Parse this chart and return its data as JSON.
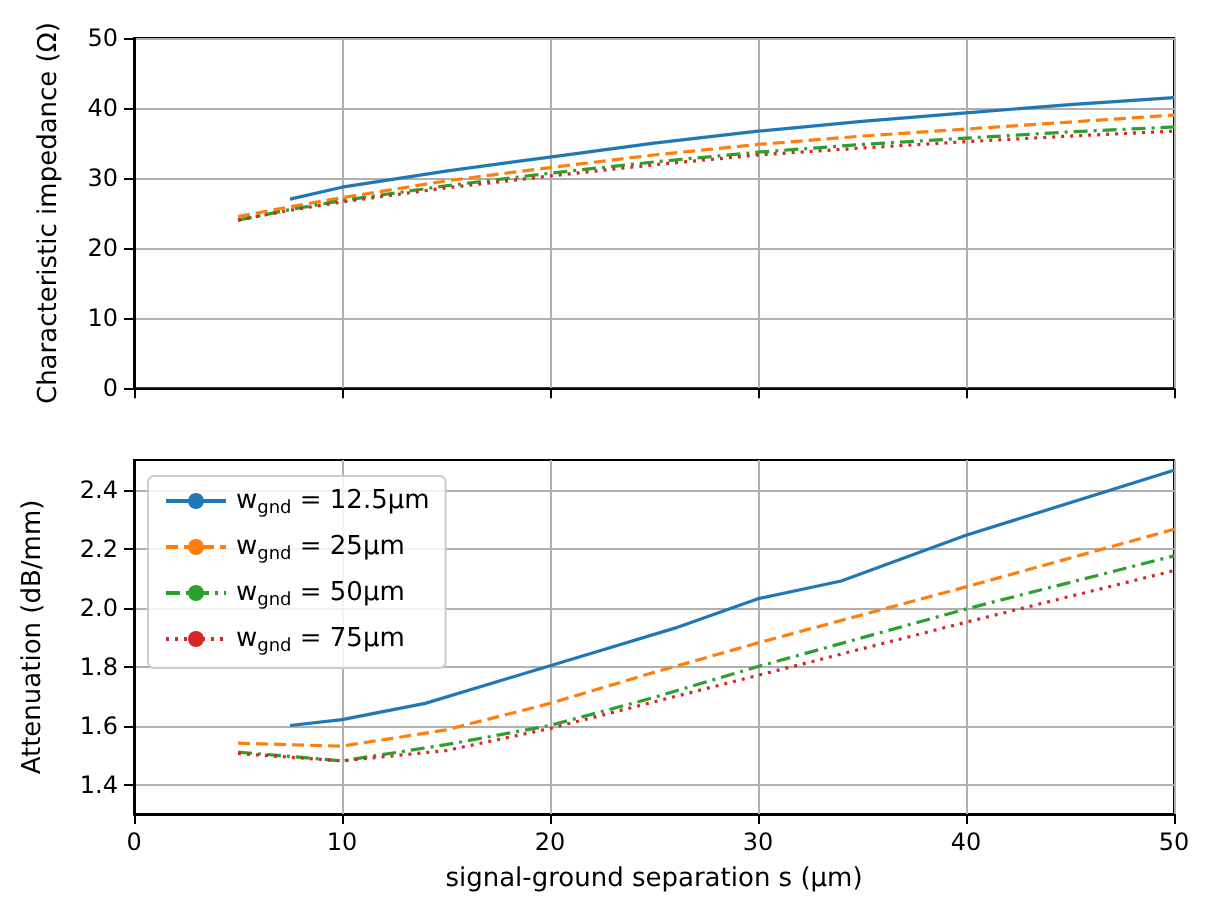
{
  "chart_data": [
    {
      "type": "line",
      "x": [
        5,
        7.5,
        10,
        15,
        20,
        25,
        30,
        35,
        40,
        45,
        50
      ],
      "ylabel": "Characteristic impedance (Ω)",
      "xlim": [
        0,
        50
      ],
      "xticks": [
        0,
        10,
        20,
        30,
        40,
        50
      ],
      "ylim": [
        0,
        50
      ],
      "yticks": [
        0,
        10,
        20,
        30,
        40,
        50
      ],
      "tick_labels": "y",
      "grid": true,
      "marker": "none",
      "legend": false,
      "series": [
        {
          "color": "#1f77b4",
          "line_style": "solid",
          "values": [
            null,
            27,
            28.7,
            31,
            33,
            35,
            36.7,
            38.1,
            39.3,
            40.5,
            41.5
          ]
        },
        {
          "color": "#ff7f0e",
          "line_style": "dashed",
          "values": [
            24.5,
            25.9,
            27.2,
            29.6,
            31.5,
            33.3,
            34.8,
            36,
            37,
            38,
            39
          ]
        },
        {
          "color": "#2ca02c",
          "line_style": "dashdot",
          "values": [
            24,
            25.5,
            26.8,
            28.9,
            30.7,
            32.3,
            33.7,
            34.8,
            35.7,
            36.6,
            37.3
          ]
        },
        {
          "color": "#d62728",
          "line_style": "dotted",
          "values": [
            24,
            25.4,
            26.6,
            28.6,
            30.3,
            31.9,
            33.3,
            34.3,
            35.2,
            36,
            36.7
          ]
        }
      ]
    },
    {
      "type": "line",
      "xlabel": "signal-ground separation s (μm)",
      "ylabel": "Attenuation (dB/mm)",
      "xlim": [
        0,
        50
      ],
      "xticks": [
        0,
        10,
        20,
        30,
        40,
        50
      ],
      "ylim": [
        1.3,
        2.5
      ],
      "yticks": [
        1.4,
        1.6,
        1.8,
        {
          "value": 2,
          "label": "2.0"
        },
        2.2,
        2.4
      ],
      "grid": true,
      "marker": "none",
      "legend": "top left",
      "series": [
        {
          "name": "w$_{gnd}$ = 12.5μm",
          "color": "#1f77b4",
          "line_style": "solid",
          "x": [
            7.5,
            10,
            14,
            18,
            22,
            26,
            30,
            34,
            40,
            50
          ],
          "values": [
            1.6,
            1.62,
            1.675,
            1.76,
            1.845,
            1.93,
            2.03,
            2.09,
            2.245,
            2.465
          ]
        },
        {
          "name": "w$_{gnd}$ = 25μm",
          "color": "#ff7f0e",
          "line_style": "dashed",
          "x": [
            5,
            10,
            15,
            20,
            25,
            30,
            40,
            50
          ],
          "values": [
            1.54,
            1.53,
            1.585,
            1.675,
            1.78,
            1.88,
            2.07,
            2.265
          ]
        },
        {
          "name": "w$_{gnd}$ = 50μm",
          "color": "#2ca02c",
          "line_style": "dashdot",
          "x": [
            5,
            10,
            15,
            20,
            25,
            30,
            40,
            50
          ],
          "values": [
            1.51,
            1.48,
            1.535,
            1.6,
            1.695,
            1.8,
            1.995,
            2.175
          ]
        },
        {
          "name": "w$_{gnd}$ = 75μm",
          "color": "#d62728",
          "line_style": "dotted",
          "x": [
            5,
            10,
            15,
            20,
            25,
            30,
            40,
            50
          ],
          "values": [
            1.505,
            1.48,
            1.515,
            1.59,
            1.68,
            1.77,
            1.95,
            2.125
          ]
        }
      ]
    }
  ]
}
